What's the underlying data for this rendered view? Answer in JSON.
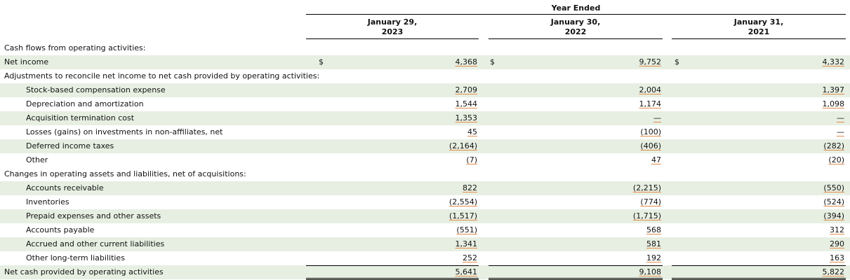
{
  "header": {
    "group_label": "Year Ended",
    "columns": [
      {
        "line1": "January 29,",
        "line2": "2023"
      },
      {
        "line1": "January 30,",
        "line2": "2022"
      },
      {
        "line1": "January 31,",
        "line2": "2021"
      }
    ]
  },
  "currency_symbol": "$",
  "rows": [
    {
      "label": "Cash flows from operating activities:",
      "indent": 0,
      "shaded": false,
      "values": [
        "",
        "",
        ""
      ]
    },
    {
      "label": "Net income",
      "indent": 0,
      "shaded": true,
      "dollar": true,
      "values": [
        "4,368",
        "9,752",
        "4,332"
      ]
    },
    {
      "label": "Adjustments to reconcile net income to net cash provided by operating activities:",
      "indent": 0,
      "shaded": false,
      "values": [
        "",
        "",
        ""
      ]
    },
    {
      "label": "Stock-based compensation expense",
      "indent": 1,
      "shaded": true,
      "values": [
        "2,709",
        "2,004",
        "1,397"
      ]
    },
    {
      "label": "Depreciation and amortization",
      "indent": 1,
      "shaded": false,
      "values": [
        "1,544",
        "1,174",
        "1,098"
      ]
    },
    {
      "label": "Acquisition termination cost",
      "indent": 1,
      "shaded": true,
      "values": [
        "1,353",
        "—",
        "—"
      ]
    },
    {
      "label": "Losses (gains) on investments in non-affiliates, net",
      "indent": 1,
      "shaded": false,
      "values": [
        "45",
        "(100)",
        "—"
      ]
    },
    {
      "label": "Deferred income taxes",
      "indent": 1,
      "shaded": true,
      "values": [
        "(2,164)",
        "(406)",
        "(282)"
      ]
    },
    {
      "label": "Other",
      "indent": 1,
      "shaded": false,
      "values": [
        "(7)",
        "47",
        "(20)"
      ]
    },
    {
      "label": "Changes in operating assets and liabilities, net of acquisitions:",
      "indent": 0,
      "shaded": false,
      "values": [
        "",
        "",
        ""
      ]
    },
    {
      "label": "Accounts receivable",
      "indent": 1,
      "shaded": true,
      "values": [
        "822",
        "(2,215)",
        "(550)"
      ]
    },
    {
      "label": "Inventories",
      "indent": 1,
      "shaded": false,
      "values": [
        "(2,554)",
        "(774)",
        "(524)"
      ]
    },
    {
      "label": "Prepaid expenses and other assets",
      "indent": 1,
      "shaded": true,
      "values": [
        "(1,517)",
        "(1,715)",
        "(394)"
      ]
    },
    {
      "label": "Accounts payable",
      "indent": 1,
      "shaded": false,
      "values": [
        "(551)",
        "568",
        "312"
      ]
    },
    {
      "label": "Accrued and other current liabilities",
      "indent": 1,
      "shaded": true,
      "values": [
        "1,341",
        "581",
        "290"
      ]
    },
    {
      "label": "Other long-term liabilities",
      "indent": 1,
      "shaded": false,
      "values": [
        "252",
        "192",
        "163"
      ]
    },
    {
      "label": "Net cash provided by operating activities",
      "indent": 0,
      "shaded": true,
      "values": [
        "5,641",
        "9,108",
        "5,822"
      ]
    }
  ]
}
